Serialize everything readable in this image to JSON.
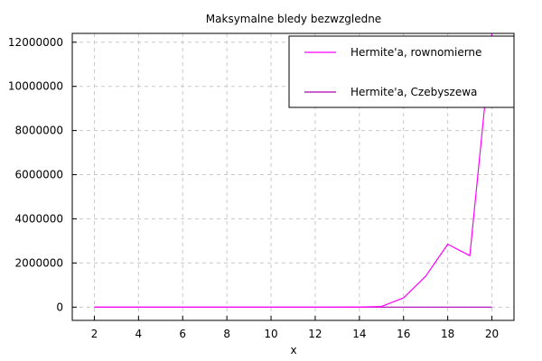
{
  "chart_data": {
    "type": "line",
    "title": "Maksymalne bledy bezwzgledne",
    "xlabel": "x",
    "ylabel": "",
    "xlim": [
      1,
      21
    ],
    "ylim": [
      -600000,
      12400000
    ],
    "x_ticks": [
      2,
      4,
      6,
      8,
      10,
      12,
      14,
      16,
      18,
      20
    ],
    "y_ticks": [
      0,
      2000000,
      4000000,
      6000000,
      8000000,
      10000000,
      12000000
    ],
    "y_tick_labels": [
      "0",
      "2000000",
      "4000000",
      "6000000",
      "8000000",
      "10000000",
      "12000000"
    ],
    "grid": true,
    "legend_position": "top-right",
    "x": [
      2,
      3,
      4,
      5,
      6,
      7,
      8,
      9,
      10,
      11,
      12,
      13,
      14,
      15,
      16,
      17,
      18,
      19,
      20
    ],
    "series": [
      {
        "name": "Hermite'a, rownomierne",
        "color": "#ff00ff",
        "values": [
          0,
          0,
          0,
          0,
          0,
          0,
          0,
          0,
          0,
          0,
          0,
          1000,
          5000,
          30000,
          420000,
          1400000,
          2850000,
          2330000,
          12400000
        ]
      },
      {
        "name": "Hermite'a, Czebyszewa",
        "color": "#b000b0",
        "values": [
          0,
          0,
          0,
          0,
          0,
          0,
          0,
          0,
          0,
          0,
          0,
          0,
          0,
          0,
          0,
          0,
          0,
          0,
          0
        ]
      }
    ]
  }
}
